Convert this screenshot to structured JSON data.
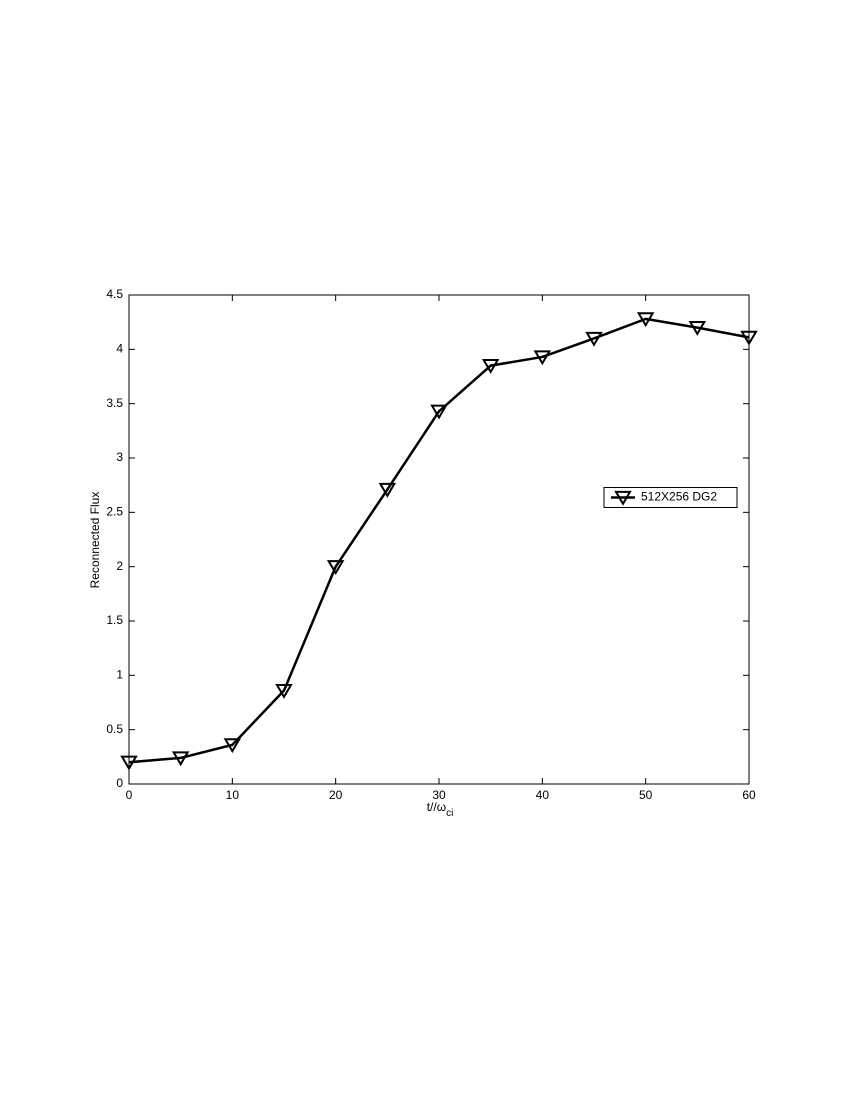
{
  "chart_data": {
    "type": "line",
    "xlabel": "t//ω",
    "xlabel_subscript": "ci",
    "ylabel": "Reconnected Flux",
    "x": [
      0,
      5,
      10,
      15,
      20,
      25,
      30,
      35,
      40,
      45,
      50,
      55,
      60
    ],
    "series": [
      {
        "name": "512X256 DG2",
        "color": "#000000",
        "marker": "triangle-down",
        "values": [
          0.2,
          0.24,
          0.36,
          0.86,
          2.0,
          2.71,
          3.43,
          3.85,
          3.93,
          4.1,
          4.28,
          4.2,
          4.11
        ]
      }
    ],
    "xlim": [
      0,
      60
    ],
    "xticks": [
      0,
      10,
      20,
      30,
      40,
      50,
      60
    ],
    "ylim": [
      0,
      4.5
    ],
    "yticks": [
      0,
      0.5,
      1,
      1.5,
      2,
      2.5,
      3,
      3.5,
      4,
      4.5
    ],
    "grid": false,
    "legend_position": "center right"
  }
}
